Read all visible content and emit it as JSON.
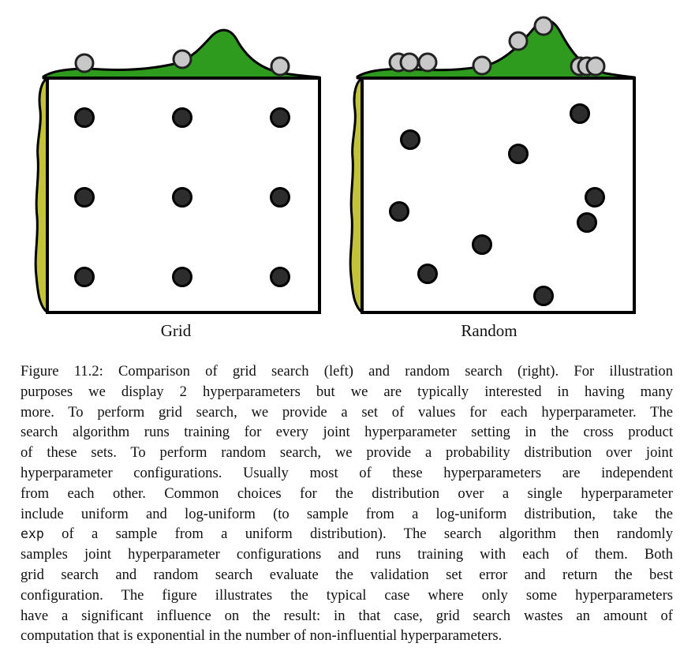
{
  "figure": {
    "panels": [
      {
        "label": "Grid"
      },
      {
        "label": "Random"
      }
    ]
  },
  "caption": {
    "lines": [
      "Figure 11.2: Comparison of grid search (left) and random search (right). For illustration",
      "purposes we display 2 hyperparameters but we are typically interested in having many",
      "more. To perform grid search, we provide a set of values for each hyperparameter. The",
      "search algorithm runs training for every joint hyperparameter setting in the cross product",
      "of these sets. To perform random search, we provide a probability distribution over joint",
      "hyperparameter configurations. Usually most of these hyperparameters are independent",
      "from each other. Common choices for the distribution over a single hyperparameter",
      "include uniform and log-uniform (to sample from a log-uniform distribution, take the",
      "of a sample from a uniform distribution). The search algorithm then randomly",
      "samples joint hyperparameter configurations and runs training with each of them. Both",
      "grid search and random search evaluate the validation set error and return the best",
      "configuration. The figure illustrates the typical case where only some hyperparameters",
      "have a significant influence on the result: in that case, grid search wastes an amount of",
      "computation that is exponential in the number of non-influential hyperparameters."
    ],
    "code_word": "exp"
  },
  "colors": {
    "green": "#2e9a1e",
    "olive": "#c3c33a",
    "point_fill": "#2d2d2d",
    "proj_fill": "#c8c8c8",
    "outline": "#000000"
  }
}
